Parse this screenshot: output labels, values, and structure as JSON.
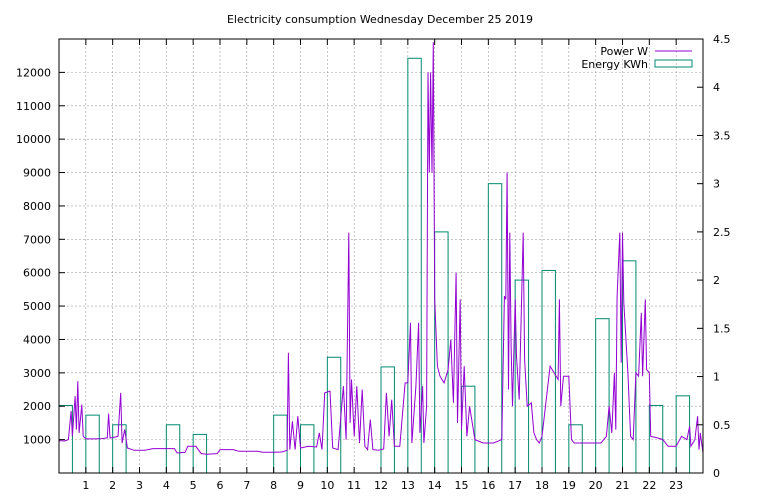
{
  "chart_data": {
    "type": "bar+line",
    "title": "Electricity consumption Wednesday December 25 2019",
    "x_ticks": [
      1,
      2,
      3,
      4,
      5,
      6,
      7,
      8,
      9,
      10,
      11,
      12,
      13,
      14,
      15,
      16,
      17,
      18,
      19,
      20,
      21,
      22,
      23
    ],
    "xlim": [
      0,
      24
    ],
    "y_left_ticks": [
      1000,
      2000,
      3000,
      4000,
      5000,
      6000,
      7000,
      8000,
      9000,
      10000,
      11000,
      12000
    ],
    "y_left_lim": [
      0,
      13000
    ],
    "y_right_ticks": [
      "0",
      "0.5",
      "1",
      "1.5",
      "2",
      "2.5",
      "3",
      "3.5",
      "4",
      "4.5"
    ],
    "y_right_lim": [
      0,
      4.5
    ],
    "grid": true,
    "legend_position": "top-right",
    "series": [
      {
        "name": "Power W",
        "type": "line",
        "color": "#9400d3",
        "points": [
          [
            0.0,
            970
          ],
          [
            0.2,
            960
          ],
          [
            0.35,
            1000
          ],
          [
            0.45,
            1850
          ],
          [
            0.5,
            1100
          ],
          [
            0.6,
            2300
          ],
          [
            0.65,
            1300
          ],
          [
            0.7,
            2750
          ],
          [
            0.75,
            1200
          ],
          [
            0.85,
            2050
          ],
          [
            0.9,
            1100
          ],
          [
            1.0,
            1020
          ],
          [
            1.3,
            1020
          ],
          [
            1.6,
            1030
          ],
          [
            1.8,
            1050
          ],
          [
            1.85,
            1780
          ],
          [
            1.9,
            1050
          ],
          [
            2.0,
            1060
          ],
          [
            2.2,
            1100
          ],
          [
            2.3,
            2400
          ],
          [
            2.35,
            900
          ],
          [
            2.45,
            1300
          ],
          [
            2.55,
            750
          ],
          [
            2.8,
            680
          ],
          [
            3.2,
            680
          ],
          [
            3.5,
            730
          ],
          [
            4.0,
            730
          ],
          [
            4.3,
            730
          ],
          [
            4.4,
            600
          ],
          [
            4.7,
            620
          ],
          [
            4.8,
            800
          ],
          [
            5.1,
            800
          ],
          [
            5.3,
            580
          ],
          [
            5.5,
            560
          ],
          [
            5.9,
            580
          ],
          [
            6.0,
            700
          ],
          [
            6.5,
            700
          ],
          [
            6.7,
            650
          ],
          [
            7.0,
            650
          ],
          [
            7.4,
            650
          ],
          [
            7.6,
            620
          ],
          [
            8.0,
            620
          ],
          [
            8.3,
            630
          ],
          [
            8.5,
            680
          ],
          [
            8.55,
            3600
          ],
          [
            8.6,
            700
          ],
          [
            8.7,
            1550
          ],
          [
            8.8,
            700
          ],
          [
            8.9,
            1700
          ],
          [
            9.0,
            750
          ],
          [
            9.3,
            800
          ],
          [
            9.6,
            780
          ],
          [
            9.7,
            1200
          ],
          [
            9.8,
            700
          ],
          [
            9.9,
            2400
          ],
          [
            10.1,
            2450
          ],
          [
            10.2,
            750
          ],
          [
            10.4,
            700
          ],
          [
            10.6,
            2600
          ],
          [
            10.7,
            1000
          ],
          [
            10.8,
            7200
          ],
          [
            10.85,
            1500
          ],
          [
            10.9,
            2800
          ],
          [
            11.0,
            1100
          ],
          [
            11.1,
            2600
          ],
          [
            11.2,
            900
          ],
          [
            11.3,
            2500
          ],
          [
            11.4,
            800
          ],
          [
            11.5,
            700
          ],
          [
            11.6,
            1600
          ],
          [
            11.7,
            700
          ],
          [
            11.9,
            680
          ],
          [
            12.1,
            720
          ],
          [
            12.2,
            2400
          ],
          [
            12.3,
            1100
          ],
          [
            12.4,
            2200
          ],
          [
            12.5,
            800
          ],
          [
            12.7,
            800
          ],
          [
            12.9,
            2700
          ],
          [
            13.0,
            2700
          ],
          [
            13.1,
            4500
          ],
          [
            13.15,
            900
          ],
          [
            13.3,
            2600
          ],
          [
            13.4,
            4500
          ],
          [
            13.45,
            1200
          ],
          [
            13.55,
            2600
          ],
          [
            13.6,
            900
          ],
          [
            13.7,
            2000
          ],
          [
            13.75,
            12000
          ],
          [
            13.8,
            9000
          ],
          [
            13.85,
            12000
          ],
          [
            13.9,
            9000
          ],
          [
            13.95,
            12900
          ],
          [
            14.0,
            5200
          ],
          [
            14.1,
            3200
          ],
          [
            14.2,
            2900
          ],
          [
            14.35,
            2700
          ],
          [
            14.5,
            3100
          ],
          [
            14.6,
            4000
          ],
          [
            14.7,
            2100
          ],
          [
            14.8,
            6000
          ],
          [
            14.85,
            1500
          ],
          [
            14.95,
            5200
          ],
          [
            15.0,
            1300
          ],
          [
            15.1,
            3200
          ],
          [
            15.2,
            1100
          ],
          [
            15.3,
            2000
          ],
          [
            15.5,
            1000
          ],
          [
            15.8,
            900
          ],
          [
            16.2,
            900
          ],
          [
            16.5,
            1000
          ],
          [
            16.6,
            5300
          ],
          [
            16.65,
            5200
          ],
          [
            16.7,
            9000
          ],
          [
            16.75,
            2500
          ],
          [
            16.8,
            7200
          ],
          [
            16.85,
            3800
          ],
          [
            16.9,
            2000
          ],
          [
            17.0,
            5200
          ],
          [
            17.05,
            3500
          ],
          [
            17.15,
            2200
          ],
          [
            17.3,
            7200
          ],
          [
            17.35,
            3400
          ],
          [
            17.45,
            2000
          ],
          [
            17.6,
            2100
          ],
          [
            17.7,
            1200
          ],
          [
            17.8,
            1000
          ],
          [
            17.9,
            900
          ],
          [
            18.0,
            1100
          ],
          [
            18.3,
            3200
          ],
          [
            18.45,
            3000
          ],
          [
            18.6,
            2800
          ],
          [
            18.65,
            5200
          ],
          [
            18.7,
            2000
          ],
          [
            18.8,
            2900
          ],
          [
            19.0,
            2900
          ],
          [
            19.1,
            1000
          ],
          [
            19.2,
            900
          ],
          [
            19.5,
            900
          ],
          [
            20.0,
            900
          ],
          [
            20.2,
            900
          ],
          [
            20.4,
            1100
          ],
          [
            20.5,
            2000
          ],
          [
            20.6,
            1200
          ],
          [
            20.7,
            3000
          ],
          [
            20.75,
            1300
          ],
          [
            20.8,
            5300
          ],
          [
            20.9,
            7200
          ],
          [
            20.95,
            3300
          ],
          [
            21.0,
            7200
          ],
          [
            21.05,
            5100
          ],
          [
            21.2,
            3000
          ],
          [
            21.3,
            1100
          ],
          [
            21.4,
            1000
          ],
          [
            21.5,
            3000
          ],
          [
            21.6,
            2900
          ],
          [
            21.7,
            4800
          ],
          [
            21.75,
            2900
          ],
          [
            21.85,
            5200
          ],
          [
            21.9,
            3100
          ],
          [
            22.0,
            3000
          ],
          [
            22.05,
            1100
          ],
          [
            22.3,
            1050
          ],
          [
            22.5,
            1000
          ],
          [
            22.7,
            800
          ],
          [
            23.0,
            800
          ],
          [
            23.2,
            1100
          ],
          [
            23.4,
            1000
          ],
          [
            23.5,
            1400
          ],
          [
            23.55,
            800
          ],
          [
            23.7,
            1000
          ],
          [
            23.8,
            1700
          ],
          [
            23.85,
            700
          ],
          [
            23.9,
            1200
          ],
          [
            24.0,
            600
          ]
        ]
      },
      {
        "name": "Energy KWh",
        "type": "bar",
        "color": "#008b6e",
        "bar_width": 0.5,
        "values": [
          [
            0,
            0.7
          ],
          [
            1,
            0.6
          ],
          [
            2,
            0.5
          ],
          [
            4,
            0.5
          ],
          [
            5,
            0.4
          ],
          [
            8,
            0.6
          ],
          [
            9,
            0.5
          ],
          [
            10,
            1.2
          ],
          [
            12,
            1.1
          ],
          [
            13,
            4.3
          ],
          [
            14,
            2.5
          ],
          [
            15,
            0.9
          ],
          [
            16,
            3.0
          ],
          [
            17,
            2.0
          ],
          [
            18,
            2.1
          ],
          [
            19,
            0.5
          ],
          [
            20,
            1.6
          ],
          [
            21,
            2.2
          ],
          [
            22,
            0.7
          ],
          [
            23,
            0.8
          ]
        ]
      }
    ]
  }
}
